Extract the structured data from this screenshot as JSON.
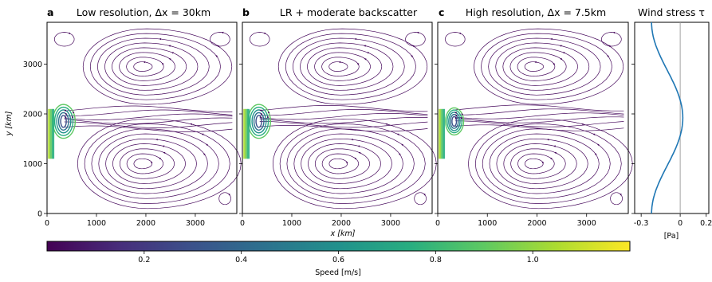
{
  "figure": {
    "panels": [
      {
        "letter": "a",
        "title": "Low resolution, Δx = 30km"
      },
      {
        "letter": "b",
        "title": "LR + moderate backscatter"
      },
      {
        "letter": "c",
        "title": "High resolution, Δx = 7.5km"
      }
    ],
    "wind_title": "Wind stress τ",
    "x_label": "x [km]",
    "y_label": "y [km]",
    "wind_unit": "[Pa]",
    "colorbar_label": "Speed [m/s]"
  },
  "chart_data": [
    {
      "type": "streamplot",
      "panels": [
        "a",
        "b",
        "c"
      ],
      "x_ticks": [
        0,
        1000,
        2000,
        3000
      ],
      "y_ticks": [
        0,
        1000,
        2000,
        3000
      ],
      "xlim": [
        0,
        3840
      ],
      "ylim": [
        0,
        3840
      ],
      "xlabel": "x [km]",
      "ylabel": "y [km]",
      "colormap": "viridis",
      "colors": {
        "low": "#440154",
        "mid": "#21918c",
        "high": "#fde725"
      }
    },
    {
      "type": "line",
      "title": "Wind stress τ",
      "xlabel": "[Pa]",
      "x_ticks": [
        -0.3,
        0,
        0.2
      ],
      "x_tick_labels": [
        "-0.3",
        "0",
        "0.2"
      ],
      "xlim": [
        -0.35,
        0.22
      ],
      "ylim": [
        0,
        3840
      ],
      "reference_line_x": 0,
      "line_color": "#1f77b4",
      "tau": {
        "amplitude": 0.12,
        "shift": -0.1,
        "formula": "tau(y) = -amplitude*cos(2*pi*y/L) + shift, L = 3840 km"
      }
    },
    {
      "type": "colorbar",
      "label": "Speed [m/s]",
      "range": [
        0,
        1.2
      ],
      "ticks": [
        0.2,
        0.4,
        0.6,
        0.8,
        1.0
      ],
      "tick_labels": [
        "0.2",
        "0.4",
        "0.6",
        "0.8",
        "1.0"
      ],
      "colormap": "viridis"
    }
  ]
}
